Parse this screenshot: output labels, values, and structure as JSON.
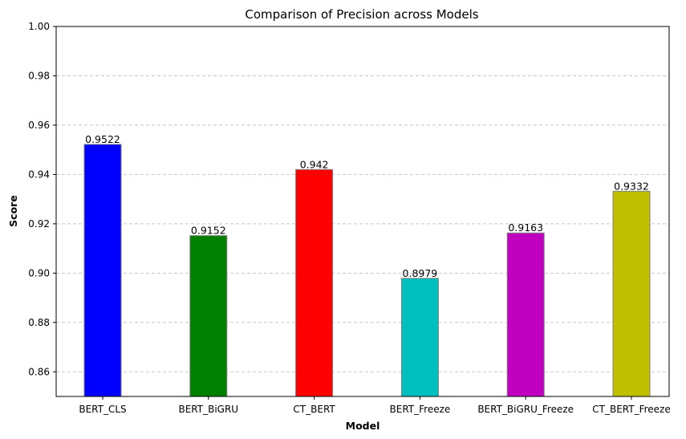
{
  "chart_data": {
    "type": "bar",
    "title": "Comparison of Precision across Models",
    "xlabel": "Model",
    "ylabel": "Score",
    "categories": [
      "BERT_CLS",
      "BERT_BiGRU",
      "CT_BERT",
      "BERT_Freeze",
      "BERT_BiGRU_Freeze",
      "CT_BERT_Freeze"
    ],
    "values": [
      0.9522,
      0.9152,
      0.942,
      0.8979,
      0.9163,
      0.9332
    ],
    "value_labels": [
      "0.9522",
      "0.9152",
      "0.942",
      "0.8979",
      "0.9163",
      "0.9332"
    ],
    "colors": [
      "#0000ff",
      "#008000",
      "#ff0000",
      "#00bfbf",
      "#bf00bf",
      "#bfbf00"
    ],
    "edge_color": "#808080",
    "ylim": [
      0.85,
      1.0
    ],
    "yticks": [
      0.86,
      0.88,
      0.9,
      0.92,
      0.94,
      0.96,
      0.98,
      1.0
    ],
    "ytick_labels": [
      "0.86",
      "0.88",
      "0.90",
      "0.92",
      "0.94",
      "0.96",
      "0.98",
      "1.00"
    ],
    "grid": "y-dashed",
    "legend": "none"
  }
}
